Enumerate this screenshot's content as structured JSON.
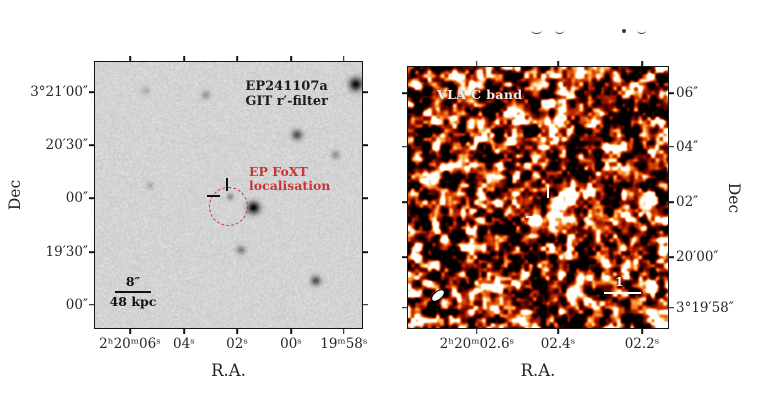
{
  "figure": {
    "background": "#ffffff",
    "top_cropped_text": "illegible glyph bottoms of a cropped text line above right panel"
  },
  "chart_data": [
    {
      "type": "heatmap",
      "id": "optical",
      "panel_label_lines": [
        "EP241107a",
        "GIT r′-filter"
      ],
      "xlabel": "R.A.",
      "ylabel": "Dec",
      "colormap": "inverted-grayscale",
      "background_gray": 212,
      "x_axis": {
        "ticks": [
          {
            "label": "2ʰ20ᵐ06ˢ",
            "f": 0.131
          },
          {
            "label": "04ˢ",
            "f": 0.333
          },
          {
            "label": "02ˢ",
            "f": 0.532
          },
          {
            "label": "00ˢ",
            "f": 0.734
          },
          {
            "label": "19ᵐ58ˢ",
            "f": 0.932
          }
        ]
      },
      "y_axis": {
        "label_side": "left",
        "ticks": [
          {
            "label": "3°21′00″",
            "f": 0.113
          },
          {
            "label": "20′30″",
            "f": 0.312
          },
          {
            "label": "00″",
            "f": 0.511
          },
          {
            "label": "19′30″",
            "f": 0.714
          },
          {
            "label": "00″",
            "f": 0.913
          }
        ]
      },
      "annotation": {
        "lines": [
          "EP FoXT",
          "localisation"
        ],
        "color": "#cc3333"
      },
      "scalebar": {
        "angular": "8″",
        "physical": "48 kpc"
      },
      "localisation_circle": {
        "fx": 0.503,
        "fy": 0.545,
        "radius_px": 19.5,
        "color": "#cc3333",
        "style": "dashed"
      },
      "crosshair": {
        "fx": 0.497,
        "fy": 0.503,
        "color": "#101010"
      },
      "sources": [
        [
          0.975,
          0.082,
          4.5,
          0.85
        ],
        [
          0.755,
          0.272,
          3.6,
          0.55
        ],
        [
          0.413,
          0.122,
          3.0,
          0.26
        ],
        [
          0.9,
          0.348,
          3.0,
          0.28
        ],
        [
          0.592,
          0.546,
          4.2,
          0.88
        ],
        [
          0.505,
          0.505,
          2.3,
          0.34
        ],
        [
          0.545,
          0.705,
          3.3,
          0.34
        ],
        [
          0.825,
          0.82,
          3.4,
          0.55
        ],
        [
          0.205,
          0.462,
          2.8,
          0.16
        ],
        [
          0.187,
          0.105,
          2.8,
          0.16
        ]
      ]
    },
    {
      "type": "heatmap",
      "id": "radio",
      "panel_label": "VLA C band",
      "xlabel": "R.A.",
      "ylabel": "Dec",
      "colormap": "hot",
      "palette_stops": [
        "#000000",
        "#3f0300",
        "#8a0f00",
        "#c63000",
        "#ef6510",
        "#ffb54f",
        "#ffffff"
      ],
      "palette_pos": [
        0,
        0.18,
        0.38,
        0.55,
        0.7,
        0.85,
        1
      ],
      "x_axis": {
        "ticks": [
          {
            "label": "2ʰ20ᵐ02.6ˢ",
            "f": 0.265
          },
          {
            "label": "02.4ˢ",
            "f": 0.577
          },
          {
            "label": "02.2ˢ",
            "f": 0.9
          }
        ]
      },
      "y_axis": {
        "label_side": "right",
        "ticks": [
          {
            "label": "06″",
            "f": 0.1
          },
          {
            "label": "04″",
            "f": 0.306
          },
          {
            "label": "02″",
            "f": 0.517
          },
          {
            "label": "20′00″",
            "f": 0.728
          },
          {
            "label": "3°19′58″",
            "f": 0.923
          }
        ]
      },
      "scalebar": {
        "angular": "1″"
      },
      "source": {
        "fx": 0.558,
        "fy": 0.556,
        "angle_deg": -35,
        "sigma_major": 6.2,
        "sigma_minor": 3.0,
        "amplitude": 0.95
      },
      "crosshair": {
        "fx": 0.545,
        "fy": 0.556,
        "color": "#ffffff"
      },
      "beam": {
        "fx": 0.115,
        "fy": 0.879,
        "angle_deg": -40
      }
    }
  ]
}
